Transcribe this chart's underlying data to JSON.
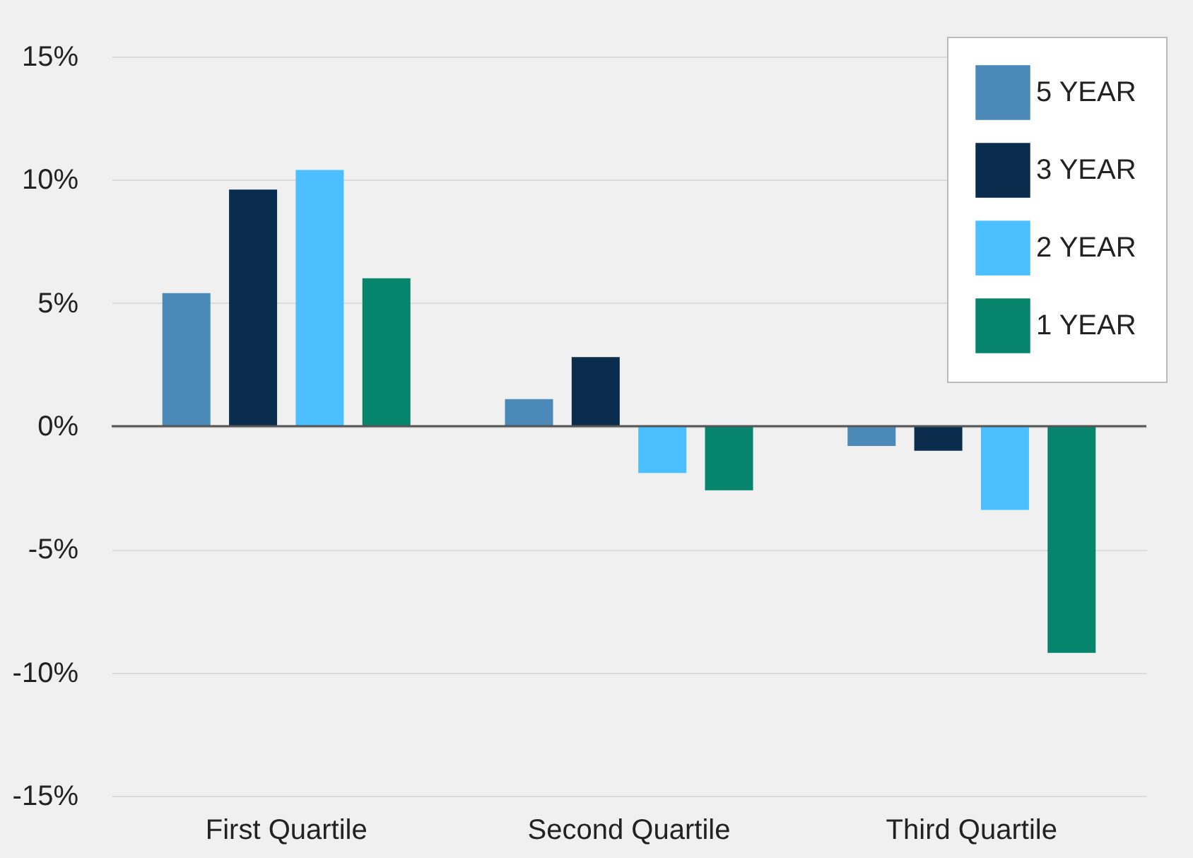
{
  "chart_data": {
    "type": "bar",
    "categories": [
      "First Quartile",
      "Second Quartile",
      "Third Quartile"
    ],
    "series": [
      {
        "name": "5 YEAR",
        "color": "#4a89b8",
        "values": [
          5.4,
          1.1,
          -0.8
        ]
      },
      {
        "name": "3 YEAR",
        "color": "#0a2d4e",
        "values": [
          9.6,
          2.8,
          -1.0
        ]
      },
      {
        "name": "2 YEAR",
        "color": "#4bbfff",
        "values": [
          10.4,
          -1.9,
          -3.4
        ]
      },
      {
        "name": "1 YEAR",
        "color": "#06846c",
        "values": [
          6.0,
          -2.6,
          -9.2
        ]
      }
    ],
    "ylim": [
      -15,
      15
    ],
    "yticks": [
      {
        "value": -15,
        "label": "-15%"
      },
      {
        "value": -10,
        "label": "-10%"
      },
      {
        "value": -5,
        "label": "-5%"
      },
      {
        "value": 0,
        "label": "0%"
      },
      {
        "value": 5,
        "label": "5%"
      },
      {
        "value": 10,
        "label": "10%"
      },
      {
        "value": 15,
        "label": "15%"
      }
    ],
    "ref_lines": [
      {
        "axis": "y",
        "value": 0,
        "color": "#555555"
      }
    ],
    "grid": "y",
    "legend": "top right"
  }
}
